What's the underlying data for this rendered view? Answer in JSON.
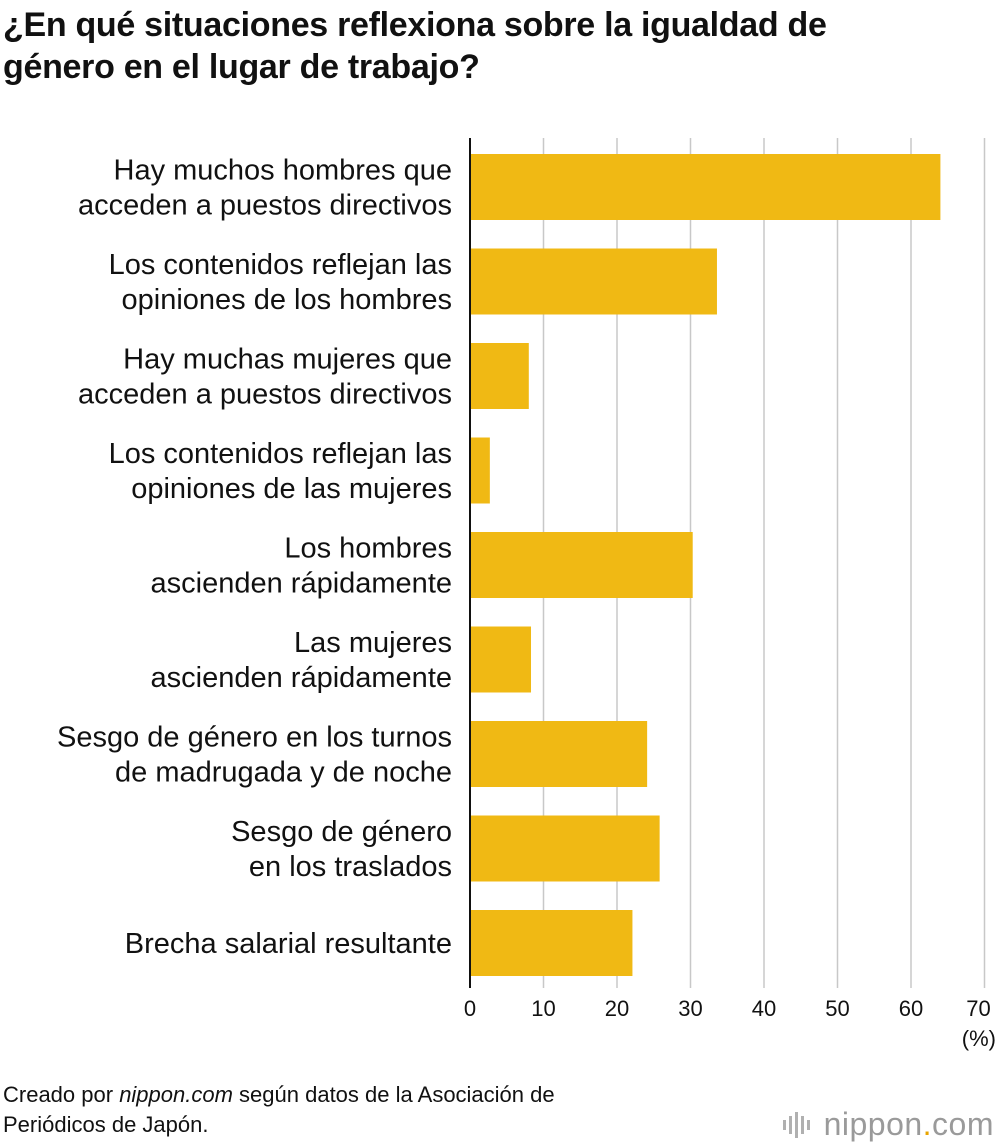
{
  "title": {
    "line1": "¿En qué situaciones reflexiona sobre la igualdad de",
    "line2": "género en el lugar de trabajo?"
  },
  "chart_data": {
    "type": "bar",
    "orientation": "horizontal",
    "categories": [
      [
        "Hay muchos hombres que",
        "acceden a puestos directivos"
      ],
      [
        "Los contenidos reflejan las",
        "opiniones de los hombres"
      ],
      [
        "Hay muchas mujeres que",
        "acceden a puestos directivos"
      ],
      [
        "Los contenidos reflejan las",
        "opiniones de las mujeres"
      ],
      [
        "Los hombres",
        "ascienden rápidamente"
      ],
      [
        "Las mujeres",
        "ascienden rápidamente"
      ],
      [
        "Sesgo de género en los turnos",
        "de madrugada y de noche"
      ],
      [
        "Sesgo de género",
        "en los traslados"
      ],
      [
        "Brecha salarial resultante"
      ]
    ],
    "values": [
      64,
      33.6,
      8,
      2.7,
      30.3,
      8.3,
      24.1,
      25.8,
      22.1
    ],
    "xlim": [
      0,
      70
    ],
    "xticks": [
      0,
      10,
      20,
      30,
      40,
      50,
      60,
      70
    ],
    "unit_label": "(%)",
    "grid": true,
    "bar_color": "#f0b914",
    "grid_color": "#c8c8c8",
    "axis_color": "#111111"
  },
  "footer": {
    "line1_prefix": "Creado por ",
    "line1_source": "nippon.com",
    "line1_suffix": " según datos de la Asociación de",
    "line2": "Periódicos de Japón."
  },
  "logo": {
    "name": "nippon",
    "dot": ".",
    "tld": "com",
    "accent_color": "#e8a500"
  }
}
